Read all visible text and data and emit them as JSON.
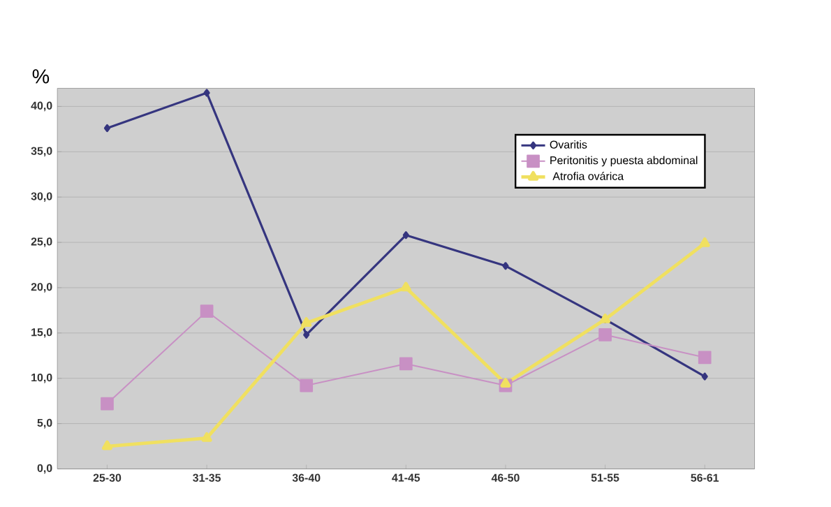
{
  "chart_data": {
    "type": "line",
    "ylabel": "%",
    "categories": [
      "25-30",
      "31-35",
      "36-40",
      "41-45",
      "46-50",
      "51-55",
      "56-61"
    ],
    "series": [
      {
        "name": "Ovaritis",
        "color": "#35357f",
        "marker": "diamond",
        "values": [
          37.6,
          41.5,
          14.8,
          25.8,
          22.4,
          16.5,
          10.2
        ]
      },
      {
        "name": "Peritonitis y puesta abdominal",
        "color": "#c890c4",
        "marker": "square",
        "values": [
          7.2,
          17.4,
          9.2,
          11.6,
          9.2,
          14.8,
          12.3
        ]
      },
      {
        "name": " Atrofia ovárica",
        "color": "#f0e060",
        "marker": "triangle",
        "values": [
          2.5,
          3.4,
          16.1,
          20.0,
          9.4,
          16.5,
          24.9
        ]
      }
    ],
    "ylim": [
      0,
      42
    ],
    "yticks": [
      {
        "value": 0,
        "label": "0,0"
      },
      {
        "value": 5,
        "label": "5,0"
      },
      {
        "value": 10,
        "label": "10,0"
      },
      {
        "value": 15,
        "label": "15,0"
      },
      {
        "value": 20,
        "label": "20,0"
      },
      {
        "value": 25,
        "label": "25,0"
      },
      {
        "value": 30,
        "label": "30,0"
      },
      {
        "value": 35,
        "label": "35,0"
      },
      {
        "value": 40,
        "label": "40,0"
      }
    ],
    "grid": "y",
    "legend": "top right"
  }
}
